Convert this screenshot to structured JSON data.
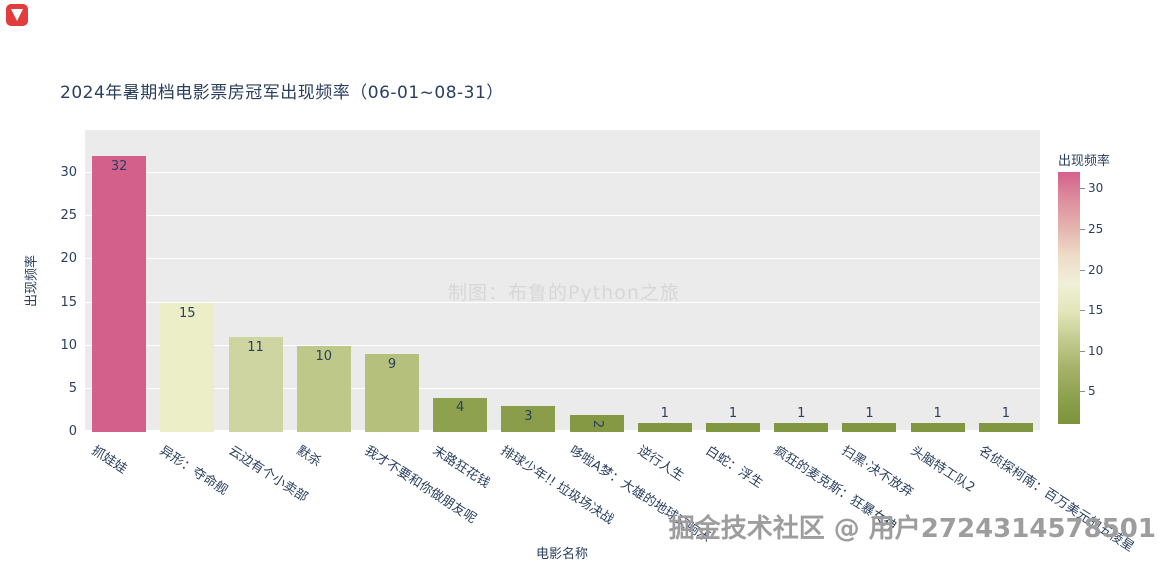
{
  "watermarks": {
    "center": "制图：布鲁的Python之旅",
    "bottom": "掘金技术社区 @ 用户2724314578501"
  },
  "chart_data": {
    "type": "bar",
    "title": "2024年暑期档电影票房冠军出现频率（06-01~08-31）",
    "xlabel": "电影名称",
    "ylabel": "出现频率",
    "categories": [
      "抓娃娃",
      "异形：夺命舰",
      "云边有个小卖部",
      "默杀",
      "我才不要和你做朋友呢",
      "末路狂花钱",
      "排球少年!! 垃圾场决战",
      "哆啦A梦：大雄的地球交响乐",
      "逆行人生",
      "白蛇：浮生",
      "疯狂的麦克斯：狂暴女神",
      "扫黑·决不放弃",
      "头脑特工队2",
      "名侦探柯南：百万美元的五棱星"
    ],
    "values": [
      32,
      15,
      11,
      10,
      9,
      4,
      3,
      2,
      1,
      1,
      1,
      1,
      1,
      1
    ],
    "bar_colors": [
      "#d2608b",
      "#ebeec7",
      "#ced5a0",
      "#bec888",
      "#b5c07d",
      "#8da14e",
      "#899d4a",
      "#859945",
      "#819640",
      "#819640",
      "#819640",
      "#819640",
      "#819640",
      "#819640"
    ],
    "yticks": [
      0,
      5,
      10,
      15,
      20,
      25,
      30
    ],
    "ylim": [
      0,
      35
    ],
    "grid": true,
    "plot_bg": "#ebebeb",
    "grid_color": "#ffffff",
    "text_color": "#2a3f5f",
    "colorbar": {
      "title": "出现频率",
      "min": 1,
      "max": 32,
      "ticks": [
        30,
        25,
        20,
        15,
        10,
        5
      ],
      "gradient_bottom_to_top": [
        "#7d923c",
        "#8ea24f",
        "#a6b269",
        "#c3cb8f",
        "#e2e6b8",
        "#f0f0d8",
        "#eedcc8",
        "#e4b4ae",
        "#dd8f9d",
        "#d4618c"
      ]
    }
  }
}
